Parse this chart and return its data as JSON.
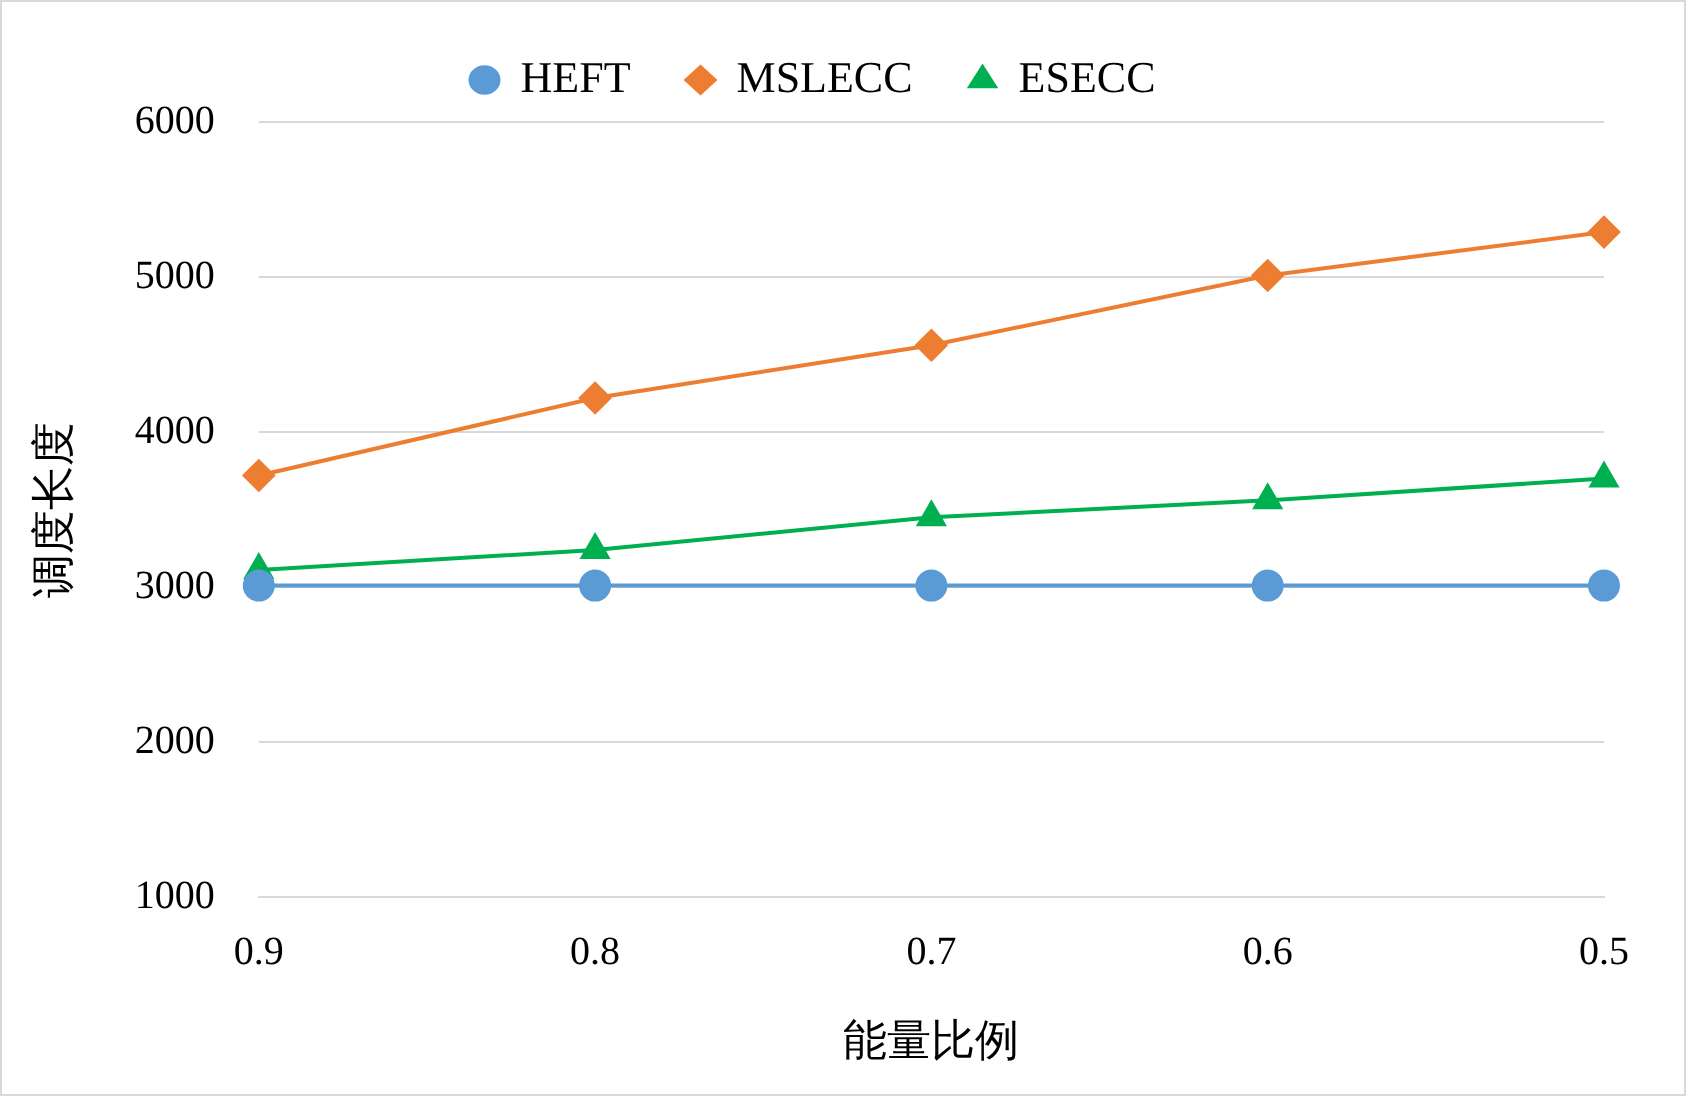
{
  "chart_data": {
    "type": "line",
    "xlabel": "能量比例",
    "ylabel": "调度长度",
    "categories": [
      "0.9",
      "0.8",
      "0.7",
      "0.6",
      "0.5"
    ],
    "series": [
      {
        "name": "HEFT",
        "color": "#5b9bd5",
        "marker": "circle",
        "values": [
          3010,
          3010,
          3010,
          3010,
          3010
        ]
      },
      {
        "name": "MSLECC",
        "color": "#ed7d31",
        "marker": "diamond",
        "values": [
          3720,
          4220,
          4560,
          5010,
          5290
        ]
      },
      {
        "name": "ESECC",
        "color": "#00b050",
        "marker": "triangle",
        "values": [
          3110,
          3240,
          3450,
          3560,
          3700
        ]
      }
    ],
    "ylim": [
      1000,
      6000
    ],
    "yticks": [
      1000,
      2000,
      3000,
      4000,
      5000,
      6000
    ],
    "grid": "y",
    "legend": "top",
    "line_style": "solid"
  }
}
